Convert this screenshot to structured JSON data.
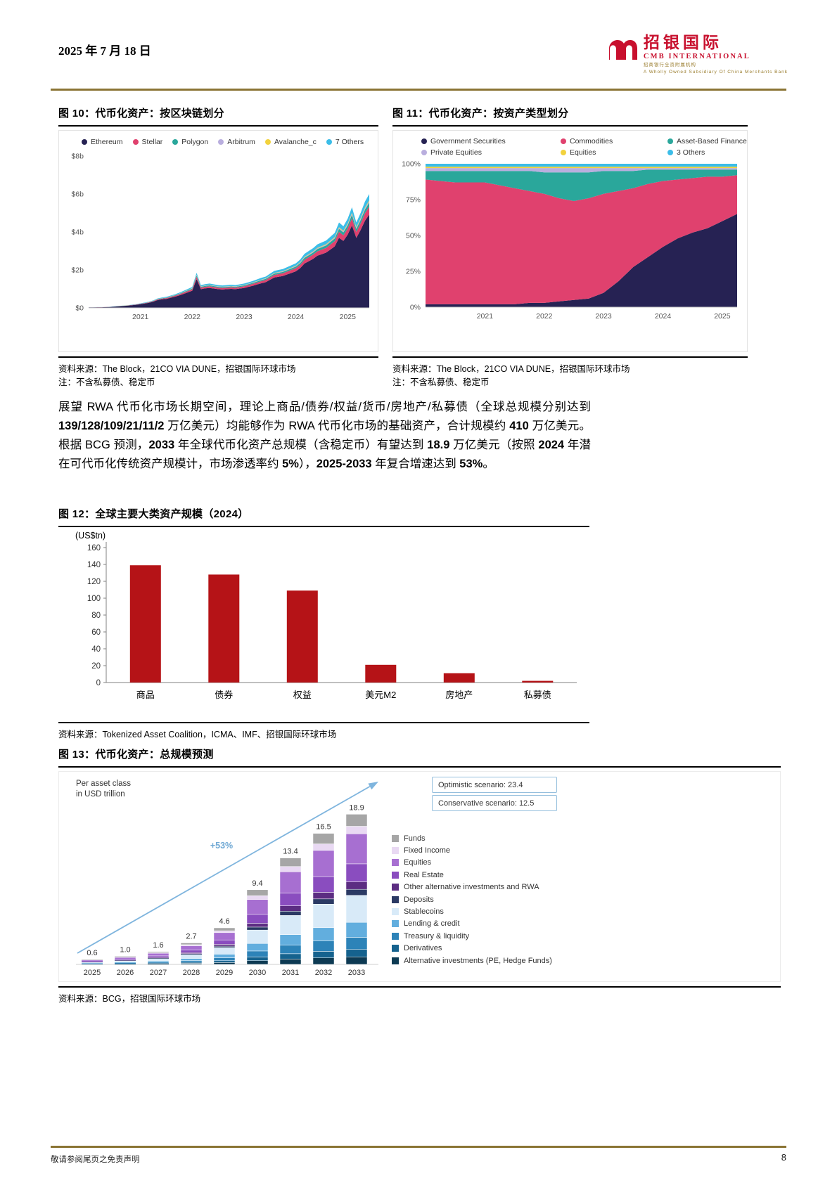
{
  "header": {
    "date": "2025 年 7 月 18 日",
    "brand": {
      "name_cn": "招银国际",
      "name_en": "CMB INTERNATIONAL",
      "sub_cn": "招商银行全资附属机构",
      "sub_en": "A Wholly Owned Subsidiary Of China Merchants Bank"
    }
  },
  "figure10": {
    "title": "图 10：代币化资产：按区块链划分",
    "source": "资料来源：The Block，21CO VIA DUNE，招银国际环球市场",
    "note": "注：不含私募债、稳定币"
  },
  "figure11": {
    "title": "图 11：代币化资产：按资产类型划分",
    "source": "资料来源：The Block，21CO VIA DUNE，招银国际环球市场",
    "note": "注：不含私募债、稳定币"
  },
  "paragraph": {
    "segments": [
      {
        "t": "展望 RWA 代币化市场长期空间，理论上商品/债券/权益/货币/房地产/私募债（全球总规模分别达到 ",
        "b": 0
      },
      {
        "t": "139/128/109/21/11/2",
        "b": 1
      },
      {
        "t": " 万亿美元）均能够作为 RWA 代币化市场的基础资产，合计规模约 ",
        "b": 0
      },
      {
        "t": "410",
        "b": 1
      },
      {
        "t": " 万亿美元。根据 BCG 预测，",
        "b": 0
      },
      {
        "t": "2033",
        "b": 1
      },
      {
        "t": " 年全球代币化资产总规模（含稳定币）有望达到 ",
        "b": 0
      },
      {
        "t": "18.9",
        "b": 1
      },
      {
        "t": " 万亿美元（按照 ",
        "b": 0
      },
      {
        "t": "2024",
        "b": 1
      },
      {
        "t": " 年潜在可代币化传统资产规模计，市场渗透率约 ",
        "b": 0
      },
      {
        "t": "5%",
        "b": 1
      },
      {
        "t": "），",
        "b": 0
      },
      {
        "t": "2025-2033",
        "b": 1
      },
      {
        "t": " 年复合增速达到 ",
        "b": 0
      },
      {
        "t": "53%",
        "b": 1
      },
      {
        "t": "。",
        "b": 0
      }
    ]
  },
  "figure12": {
    "title": "图 12：全球主要大类资产规模（2024）",
    "unit_label": "(US$tn)",
    "source": "资料来源：Tokenized Asset Coalition，ICMA、IMF、招银国际环球市场"
  },
  "figure13": {
    "title": "图 13：代币化资产：总规模预测",
    "note_line1": "Per asset class",
    "note_line2": "in USD trillion",
    "scenario_optimistic": "Optimistic scenario: 23.4",
    "scenario_conservative": "Conservative scenario: 12.5",
    "growth_label": "+53%",
    "source": "资料来源：BCG，招银国际环球市场"
  },
  "footer": {
    "disclaimer": "敬请参阅尾页之免责声明",
    "page": "8"
  },
  "chart_data": [
    {
      "id": "fig10",
      "type": "area",
      "stacked": true,
      "title": "代币化资产：按区块链划分",
      "unit": "USD billions",
      "ylim": [
        0,
        8
      ],
      "y_ticks": [
        "$0",
        "$2b",
        "$4b",
        "$6b",
        "$8b"
      ],
      "x_ticks": [
        "2021",
        "2022",
        "2023",
        "2024",
        "2025"
      ],
      "x_tick_index": [
        12,
        24,
        36,
        48,
        60
      ],
      "frequency": "monthly",
      "x_start": "2020-01",
      "x_end": "2025-06",
      "totals_bn": [
        0.03,
        0.03,
        0.04,
        0.04,
        0.05,
        0.06,
        0.08,
        0.1,
        0.12,
        0.14,
        0.17,
        0.2,
        0.24,
        0.28,
        0.33,
        0.4,
        0.5,
        0.55,
        0.58,
        0.65,
        0.72,
        0.8,
        0.9,
        1.0,
        1.1,
        1.85,
        1.2,
        1.25,
        1.28,
        1.24,
        1.2,
        1.18,
        1.2,
        1.22,
        1.2,
        1.24,
        1.28,
        1.35,
        1.42,
        1.5,
        1.58,
        1.65,
        1.8,
        1.95,
        2.0,
        2.05,
        2.15,
        2.25,
        2.35,
        2.55,
        2.85,
        3.0,
        3.15,
        3.35,
        3.45,
        3.55,
        3.75,
        3.95,
        4.5,
        4.3,
        4.7,
        5.3,
        4.5,
        5.0,
        5.6,
        6.0
      ],
      "series": [
        {
          "name": "Ethereum",
          "color": "#262253",
          "share": 0.82
        },
        {
          "name": "Stellar",
          "color": "#e0416e",
          "share": 0.07
        },
        {
          "name": "Polygon",
          "color": "#2aa79b",
          "share": 0.035
        },
        {
          "name": "Arbitrum",
          "color": "#b9aede",
          "share": 0.012
        },
        {
          "name": "Avalanche_c",
          "color": "#f2d23d",
          "share": 0.008
        },
        {
          "name": "7 Others",
          "color": "#3bbde8",
          "share": 0.055
        }
      ]
    },
    {
      "id": "fig11",
      "type": "area",
      "stacked_percent": true,
      "title": "代币化资产：按资产类型划分",
      "ylim": [
        0,
        1
      ],
      "y_ticks": [
        "0%",
        "25%",
        "50%",
        "75%",
        "100%"
      ],
      "x_ticks": [
        "2021",
        "2022",
        "2023",
        "2024",
        "2025"
      ],
      "x_tick_index": [
        4,
        8,
        12,
        16,
        20
      ],
      "frequency": "quarterly",
      "x_start": "2020Q1",
      "x_end": "2025Q2",
      "series": [
        {
          "name": "Government Securities",
          "color": "#262253",
          "values": [
            0.02,
            0.02,
            0.02,
            0.02,
            0.02,
            0.02,
            0.02,
            0.03,
            0.03,
            0.04,
            0.05,
            0.06,
            0.1,
            0.18,
            0.28,
            0.35,
            0.42,
            0.48,
            0.52,
            0.55,
            0.6,
            0.65
          ]
        },
        {
          "name": "Commodities",
          "color": "#e0416e",
          "values": [
            0.87,
            0.86,
            0.85,
            0.85,
            0.85,
            0.83,
            0.81,
            0.78,
            0.76,
            0.72,
            0.69,
            0.7,
            0.69,
            0.63,
            0.55,
            0.51,
            0.46,
            0.41,
            0.38,
            0.36,
            0.31,
            0.27
          ]
        },
        {
          "name": "Asset-Based Finance",
          "color": "#2aa79b",
          "values": [
            0.06,
            0.07,
            0.08,
            0.08,
            0.08,
            0.1,
            0.12,
            0.14,
            0.15,
            0.18,
            0.2,
            0.18,
            0.16,
            0.14,
            0.12,
            0.1,
            0.08,
            0.07,
            0.06,
            0.05,
            0.05,
            0.04
          ]
        },
        {
          "name": "Private Equities",
          "color": "#b9aede",
          "values": [
            0.02,
            0.02,
            0.02,
            0.02,
            0.02,
            0.02,
            0.02,
            0.02,
            0.03,
            0.03,
            0.03,
            0.03,
            0.02,
            0.02,
            0.02,
            0.01,
            0.01,
            0.01,
            0.01,
            0.01,
            0.01,
            0.01
          ]
        },
        {
          "name": "Equities",
          "color": "#f2d23d",
          "values": [
            0.01,
            0.01,
            0.01,
            0.01,
            0.01,
            0.01,
            0.01,
            0.01,
            0.01,
            0.01,
            0.01,
            0.01,
            0.01,
            0.01,
            0.01,
            0.01,
            0.01,
            0.01,
            0.01,
            0.01,
            0.01,
            0.01
          ]
        },
        {
          "name": "3 Others",
          "color": "#3bbde8",
          "values": [
            0.02,
            0.02,
            0.02,
            0.02,
            0.02,
            0.02,
            0.02,
            0.02,
            0.02,
            0.02,
            0.02,
            0.02,
            0.02,
            0.02,
            0.02,
            0.02,
            0.02,
            0.02,
            0.02,
            0.02,
            0.02,
            0.02
          ]
        }
      ]
    },
    {
      "id": "fig12",
      "type": "bar",
      "title": "全球主要大类资产规模（2024）",
      "ylabel": "(US$tn)",
      "categories": [
        "商品",
        "债券",
        "权益",
        "美元M2",
        "房地产",
        "私募债"
      ],
      "values": [
        139,
        128,
        109,
        21,
        11,
        2
      ],
      "ylim": [
        0,
        160
      ],
      "ytick_step": 20,
      "bar_color": "#b51317"
    },
    {
      "id": "fig13",
      "type": "stacked-bar",
      "title": "代币化资产：总规模预测",
      "unit": "USD trillion",
      "years": [
        "2025",
        "2026",
        "2027",
        "2028",
        "2029",
        "2030",
        "2031",
        "2032",
        "2033"
      ],
      "totals": [
        0.6,
        1.0,
        1.6,
        2.7,
        4.6,
        9.4,
        13.4,
        16.5,
        18.9
      ],
      "growth_label": "+53%",
      "scenarios": {
        "optimistic": 23.4,
        "conservative": 12.5
      },
      "segments_bottom_to_top": [
        {
          "name": "Alternative investments (PE, Hedge Funds)",
          "color": "#0d3a53",
          "share": 0.05
        },
        {
          "name": "Derivatives",
          "color": "#15628e",
          "share": 0.05
        },
        {
          "name": "Treasury & liquidity",
          "color": "#2d83b8",
          "share": 0.08
        },
        {
          "name": "Lending & credit",
          "color": "#62aede",
          "share": 0.1
        },
        {
          "name": "Stablecoins",
          "color": "#d8eaf8",
          "share": 0.18
        },
        {
          "name": "Deposits",
          "color": "#2b3a64",
          "share": 0.04
        },
        {
          "name": "Other alternative investments and RWA",
          "color": "#5c2d82",
          "share": 0.05
        },
        {
          "name": "Real Estate",
          "color": "#8a4dbf",
          "share": 0.12
        },
        {
          "name": "Equities",
          "color": "#a76fd1",
          "share": 0.2
        },
        {
          "name": "Fixed Income",
          "color": "#e9d9f3",
          "share": 0.05
        },
        {
          "name": "Funds",
          "color": "#a6a6a6",
          "share": 0.08
        }
      ]
    }
  ]
}
